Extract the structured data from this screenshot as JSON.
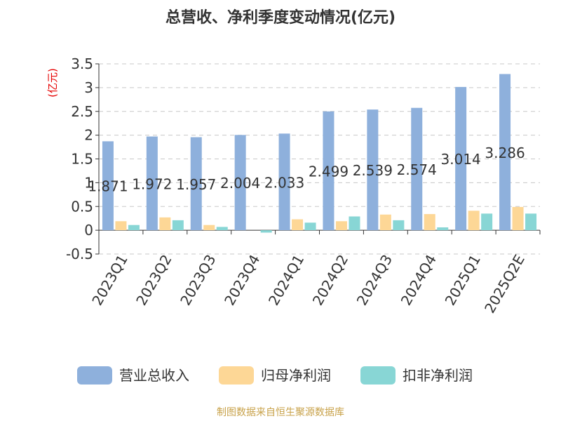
{
  "chart_data": {
    "type": "bar",
    "title": "总营收、净利季度变动情况(亿元)",
    "unit_label": "(亿元)",
    "categories": [
      "2023Q1",
      "2023Q2",
      "2023Q3",
      "2023Q4",
      "2024Q1",
      "2024Q2",
      "2024Q3",
      "2024Q4",
      "2025Q1",
      "2025Q2E"
    ],
    "series": [
      {
        "name": "营业总收入",
        "color": "#8eb0dc",
        "values": [
          1.871,
          1.972,
          1.957,
          2.004,
          2.033,
          2.499,
          2.539,
          2.574,
          3.014,
          3.286
        ],
        "labels": [
          "1.871",
          "1.972",
          "1.957",
          "2.004",
          "2.033",
          "2.499",
          "2.539",
          "2.574",
          "3.014",
          "3.286"
        ]
      },
      {
        "name": "归母净利润",
        "color": "#fdd796",
        "values": [
          0.19,
          0.27,
          0.11,
          0.0,
          0.23,
          0.19,
          0.33,
          0.34,
          0.41,
          0.49
        ]
      },
      {
        "name": "扣非净利润",
        "color": "#88d6d5",
        "values": [
          0.11,
          0.21,
          0.07,
          -0.05,
          0.16,
          0.29,
          0.21,
          0.06,
          0.35,
          0.35
        ]
      }
    ],
    "ylim": [
      -0.5,
      3.5
    ],
    "yticks": [
      "3.5",
      "3",
      "2.5",
      "2",
      "1.5",
      "1",
      "0.5",
      "0",
      "-0.5"
    ],
    "grid": true,
    "legend_position": "bottom",
    "unit_color": "#e60000"
  },
  "footer": {
    "source": "制图数据来自恒生聚源数据库",
    "source_color": "#c8a24a"
  }
}
